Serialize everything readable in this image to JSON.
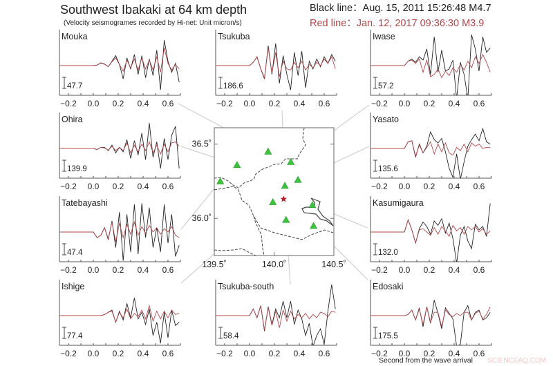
{
  "header": {
    "title": "Southwest Ibakaki at 64 km depth",
    "subtitle": "(Velocity seismogrames recorded by Hi-net: Unit micron/s)",
    "black_line_label": "Black line：Aug. 15, 2011 15:26:48 M4.7",
    "red_line_label": "Red line：Jan. 12, 2017 09:36:30 M3.9"
  },
  "colors": {
    "black_line": "#222222",
    "red_line": "#b3474a",
    "station": "#3cc23c",
    "epicenter": "#b0202a",
    "connector": "#d0d0d0",
    "border": "#444444"
  },
  "watermark": "SCIENCEAQ.COM",
  "chart_data": {
    "type": "line",
    "xlabel": "Second from the wave arrival",
    "x_tick_labels": [
      "−0.2",
      "0.0",
      "0.2",
      "0.4",
      "0.6"
    ],
    "x_ticks": [
      -0.2,
      0.0,
      0.2,
      0.4,
      0.6
    ],
    "xlim": [
      -0.27,
      0.7
    ],
    "sample_times": [
      0,
      0.03,
      0.06,
      0.09,
      0.12,
      0.15,
      0.18,
      0.21,
      0.24,
      0.27,
      0.3,
      0.33,
      0.36,
      0.39,
      0.42,
      0.45,
      0.48,
      0.51,
      0.54,
      0.57,
      0.6,
      0.63,
      0.66,
      0.69
    ],
    "amplitude_unit": "scale bar",
    "stations": [
      {
        "name": "Mouka",
        "scale": "47.7",
        "black": [
          0,
          0.05,
          0.25,
          0.15,
          -0.1,
          0.4,
          0.9,
          0.1,
          -1.2,
          0.7,
          -0.3,
          1.0,
          -0.8,
          0.9,
          -1.1,
          0.6,
          -0.9,
          1.4,
          -2.2,
          2.3,
          0.4,
          -0.6,
          0.2,
          -1.5
        ],
        "red": [
          0,
          0.05,
          0.22,
          0.12,
          -0.1,
          0.35,
          0.7,
          0.1,
          -0.5,
          0.5,
          -0.2,
          0.6,
          -0.4,
          0.7,
          -0.3,
          0.5,
          -0.4,
          0.8,
          -0.6,
          1.6,
          0.2,
          -0.4,
          0.1,
          -0.3
        ]
      },
      {
        "name": "Tsukuba",
        "scale": "186.6",
        "black": [
          0,
          0.3,
          0.8,
          -0.3,
          -1.2,
          1.8,
          -0.8,
          2.0,
          -1.6,
          0.9,
          -0.8,
          -2.2,
          1.2,
          -0.9,
          1.3,
          -2.0,
          0.4,
          -0.3,
          0.6,
          -0.1,
          0.8,
          0.2,
          1.0,
          0.4
        ],
        "red": [
          0,
          0.3,
          0.8,
          -0.3,
          -1.1,
          1.6,
          -0.7,
          1.2,
          -1.0,
          0.4,
          -0.3,
          -0.4,
          0.3,
          -0.2,
          0.4,
          -0.4,
          0.1,
          -0.2,
          0.3,
          0,
          0.6,
          0.2,
          0.8,
          -0.3
        ]
      },
      {
        "name": "Iwase",
        "scale": "57.2",
        "black": [
          0,
          0.4,
          0.6,
          0.3,
          0.8,
          0.5,
          1.5,
          -0.8,
          2.6,
          -0.6,
          1.4,
          -0.5,
          -0.3,
          0.5,
          -3,
          0.3,
          -0.8,
          -3,
          2.8,
          1.5,
          -0.5,
          2.6,
          1.2,
          1.6
        ],
        "red": [
          0,
          0.4,
          0.5,
          0.2,
          0.6,
          -0.6,
          0.5,
          -1.0,
          -0.8,
          -0.3,
          -1.1,
          -0.5,
          -0.9,
          -0.2,
          -0.6,
          0.1,
          -0.4,
          0.4,
          -0.2,
          0.8,
          0.2,
          1.0,
          0.3,
          -0.6
        ]
      },
      {
        "name": "Ohira",
        "scale": "139.9",
        "black": [
          0,
          -0.1,
          0.1,
          0.1,
          -0.2,
          0.3,
          -0.4,
          0.1,
          -0.3,
          0.8,
          -0.9,
          0.7,
          -0.6,
          1.4,
          -1.0,
          2.3,
          -0.8,
          0.6,
          -1.8,
          0.9,
          -1.0,
          1.2,
          2.0,
          -1.8
        ],
        "red": [
          0,
          -0.1,
          0.1,
          0.05,
          -0.15,
          0.2,
          -0.2,
          0.1,
          -0.2,
          0.5,
          -0.4,
          0.3,
          -0.3,
          0.4,
          -0.2,
          0.6,
          -0.4,
          0.3,
          -0.5,
          0.4,
          -0.3,
          0.5,
          0.6,
          0.2
        ]
      },
      {
        "name": "Yasato",
        "scale": "135.6",
        "black": [
          0,
          0.6,
          0.7,
          -0.8,
          0.4,
          -0.4,
          0.2,
          1.5,
          0.8,
          0.5,
          0.9,
          -0.3,
          -1.8,
          -2.6,
          -0.5,
          -2.8,
          -1.2,
          0.2,
          0.8,
          1.3,
          0.7,
          1.8,
          0.6,
          0.4
        ],
        "red": [
          0,
          0.6,
          0.7,
          -0.7,
          0.3,
          -0.4,
          0.1,
          0.6,
          -0.5,
          0.4,
          -0.3,
          0.5,
          -0.4,
          -0.6,
          0.1,
          -0.2,
          0.4,
          -0.3,
          0.5,
          0.2,
          0.4,
          0.0,
          0.1,
          0.1
        ]
      },
      {
        "name": "Tatebayashi",
        "scale": "47.4",
        "black": [
          0,
          -0.5,
          -0.3,
          0.4,
          -0.7,
          1.0,
          -1.4,
          1.8,
          -2.6,
          1.6,
          -1.8,
          2.5,
          -2.0,
          2.6,
          -0.5,
          2.2,
          -1.4,
          0.4,
          -1.8,
          2.5,
          -1.0,
          1.6,
          -2.2,
          -1.2
        ],
        "red": [
          0,
          -0.5,
          -0.3,
          0.4,
          -0.6,
          0.9,
          -0.9,
          0.8,
          -0.5,
          0.7,
          -0.2,
          0.9,
          -0.3,
          0.5,
          -0.1,
          0.6,
          0,
          0.4,
          -0.2,
          0.3,
          0,
          0.5,
          -0.3,
          -0.5
        ]
      },
      {
        "name": "Kasumigaura",
        "scale": "132.0",
        "black": [
          0,
          1.1,
          0.2,
          -1.0,
          0.3,
          0.9,
          0.5,
          -0.2,
          1.0,
          0.6,
          1.2,
          -0.1,
          0.8,
          -0.6,
          -2.8,
          -0.3,
          0.5,
          -0.8,
          -1.5,
          0.7,
          0.2,
          0.5,
          -0.4,
          2.6
        ],
        "red": [
          0,
          1.1,
          0.2,
          -1.0,
          0.2,
          0.3,
          0.0,
          -0.3,
          0.4,
          -0.2,
          0.5,
          0.1,
          -0.4,
          0.6,
          0.1,
          0.4,
          -0.2,
          0.5,
          0.2,
          0.5,
          0,
          0.3,
          -0.2,
          0.1
        ]
      },
      {
        "name": "Ishige",
        "scale": "77.4",
        "black": [
          0,
          0,
          0,
          0.1,
          0.3,
          0.5,
          -0.6,
          0.4,
          -0.4,
          1.1,
          -0.2,
          1.6,
          -0.3,
          0.3,
          -0.8,
          0.6,
          -1.8,
          -0.6,
          -2.5,
          0.3,
          -2.0,
          0.5,
          -0.9,
          -0.6
        ],
        "red": [
          0,
          0,
          0,
          0.1,
          0.3,
          0.4,
          -0.6,
          0.3,
          -0.2,
          0.6,
          -0.3,
          0.2,
          -0.1,
          0.5,
          -0.3,
          0.9,
          -0.5,
          0.4,
          -0.3,
          0.4,
          -0.2,
          0.5,
          0.1,
          0.2
        ]
      },
      {
        "name": "Tsukuba-south",
        "scale": "58.4",
        "black": [
          0,
          0.6,
          -0.2,
          0.9,
          -1.4,
          0.8,
          -0.8,
          0.6,
          -0.2,
          1.3,
          -0.2,
          1.3,
          -0.8,
          0.5,
          -0.3,
          -1.8,
          -0.7,
          -2.8,
          -1.8,
          -1.2,
          -2.6,
          0.4,
          2.8,
          0.6
        ],
        "red": [
          0,
          0.6,
          -0.2,
          0.9,
          -1.3,
          0.7,
          -0.9,
          0.4,
          -1.1,
          0.5,
          -0.5,
          0.4,
          -0.3,
          0.1,
          -0.2,
          0.2,
          -0.3,
          0.1,
          -0.2,
          0.3,
          0.2,
          -0.1,
          0.4,
          0.3
        ]
      },
      {
        "name": "Edosaki",
        "scale": "175.5",
        "black": [
          0,
          0.1,
          0.5,
          -0.4,
          0.7,
          -1.0,
          0.8,
          -0.7,
          1.4,
          0.2,
          -1.2,
          0.7,
          0.2,
          -0.3,
          -2.8,
          -2.6,
          0.3,
          0.9,
          -0.4,
          0.3,
          0.5,
          -0.4,
          -0.2,
          0.3
        ],
        "red": [
          0,
          0.1,
          0.5,
          -0.4,
          0.6,
          -0.8,
          0.8,
          -0.6,
          0.3,
          0.3,
          -1.0,
          0.5,
          0.1,
          -0.1,
          0.2,
          0,
          0.3,
          0.3,
          -0.4,
          0.2,
          0.4,
          -0.3,
          0.1,
          0.8
        ]
      }
    ]
  },
  "map": {
    "lon_range": [
      139.5,
      140.5
    ],
    "lat_range": [
      35.75,
      36.61
    ],
    "lon_tick_labels": [
      "139.5˚",
      "140.0˚",
      "140.5˚"
    ],
    "lon_ticks": [
      139.5,
      140.0,
      140.5
    ],
    "lat_tick_labels": [
      "36.5˚",
      "36.0˚"
    ],
    "lat_ticks": [
      36.5,
      36.0
    ],
    "epicenter": {
      "lon": 140.08,
      "lat": 36.13
    },
    "stations": [
      {
        "name": "Mouka",
        "lon": 139.95,
        "lat": 36.45
      },
      {
        "name": "Tsukuba",
        "lon": 140.09,
        "lat": 36.22
      },
      {
        "name": "Iwase",
        "lon": 140.14,
        "lat": 36.38
      },
      {
        "name": "Ohira",
        "lon": 139.69,
        "lat": 36.36
      },
      {
        "name": "Yasato",
        "lon": 140.2,
        "lat": 36.26
      },
      {
        "name": "Tatebayashi",
        "lon": 139.55,
        "lat": 36.25
      },
      {
        "name": "Kasumigaura",
        "lon": 140.32,
        "lat": 36.09
      },
      {
        "name": "Ishige",
        "lon": 139.99,
        "lat": 36.11
      },
      {
        "name": "Tsukuba-south",
        "lon": 140.1,
        "lat": 35.99
      },
      {
        "name": "Edosaki",
        "lon": 140.33,
        "lat": 35.95
      }
    ]
  }
}
